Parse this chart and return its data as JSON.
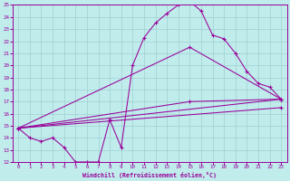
{
  "xlabel": "Windchill (Refroidissement éolien,°C)",
  "bg_color": "#c0ecec",
  "grid_color": "#a0d0d0",
  "line_color": "#990099",
  "xlim": [
    -0.5,
    23.5
  ],
  "ylim": [
    12,
    25
  ],
  "xticks": [
    0,
    1,
    2,
    3,
    4,
    5,
    6,
    7,
    8,
    9,
    10,
    11,
    12,
    13,
    14,
    15,
    16,
    17,
    18,
    19,
    20,
    21,
    22,
    23
  ],
  "yticks": [
    12,
    13,
    14,
    15,
    16,
    17,
    18,
    19,
    20,
    21,
    22,
    23,
    24,
    25
  ],
  "line1_x": [
    0,
    1,
    2,
    3,
    4,
    5,
    6,
    7,
    8,
    9,
    10,
    11,
    12,
    13,
    14,
    15,
    16,
    17,
    18,
    19,
    20,
    21,
    22,
    23
  ],
  "line1_y": [
    14.8,
    14.0,
    13.7,
    14.0,
    13.2,
    12.0,
    12.0,
    12.0,
    15.5,
    13.2,
    20.0,
    22.3,
    23.5,
    24.3,
    25.0,
    25.3,
    24.5,
    22.5,
    22.2,
    21.0,
    19.5,
    18.5,
    18.2,
    17.2
  ],
  "line2_x": [
    0,
    23
  ],
  "line2_y": [
    14.8,
    17.2
  ],
  "line3_x": [
    0,
    15,
    23
  ],
  "line3_y": [
    14.8,
    21.5,
    17.2
  ],
  "line4_x": [
    0,
    15,
    23
  ],
  "line4_y": [
    14.8,
    17.0,
    17.2
  ],
  "line5_x": [
    0,
    23
  ],
  "line5_y": [
    14.8,
    16.5
  ]
}
